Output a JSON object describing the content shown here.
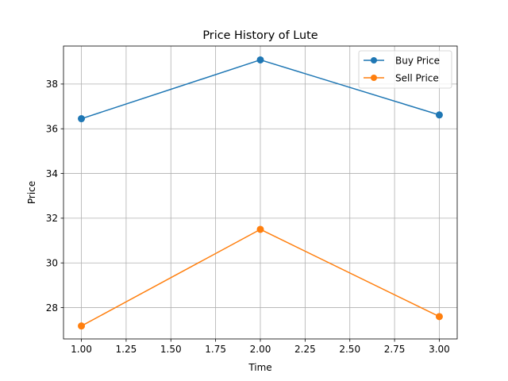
{
  "chart_data": {
    "type": "line",
    "title": "Price History of Lute",
    "xlabel": "Time",
    "ylabel": "Price",
    "x": [
      1,
      2,
      3
    ],
    "xlim": [
      0.9,
      3.1
    ],
    "ylim": [
      26.6,
      39.7
    ],
    "xticks": [
      1.0,
      1.25,
      1.5,
      1.75,
      2.0,
      2.25,
      2.5,
      2.75,
      3.0
    ],
    "xtick_labels": [
      "1.00",
      "1.25",
      "1.50",
      "1.75",
      "2.00",
      "2.25",
      "2.50",
      "2.75",
      "3.00"
    ],
    "yticks": [
      28,
      30,
      32,
      34,
      36,
      38
    ],
    "ytick_labels": [
      "28",
      "30",
      "32",
      "34",
      "36",
      "38"
    ],
    "grid": true,
    "legend_position": "top-right",
    "series": [
      {
        "name": "Buy Price",
        "values": [
          36.45,
          39.08,
          36.62
        ],
        "color": "#1f77b4",
        "marker": "circle"
      },
      {
        "name": "Sell Price",
        "values": [
          27.18,
          31.5,
          27.6
        ],
        "color": "#ff7f0e",
        "marker": "circle"
      }
    ]
  }
}
